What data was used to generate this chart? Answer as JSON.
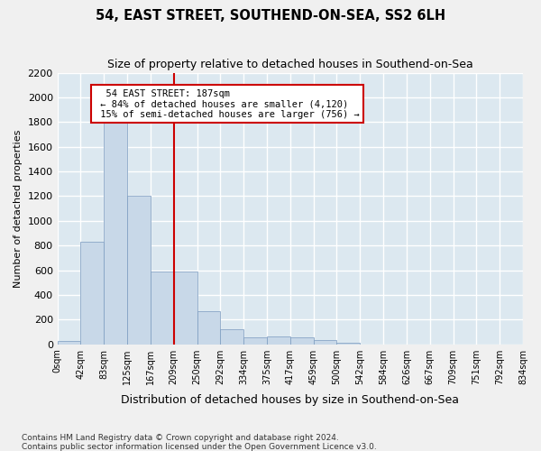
{
  "title": "54, EAST STREET, SOUTHEND-ON-SEA, SS2 6LH",
  "subtitle": "Size of property relative to detached houses in Southend-on-Sea",
  "xlabel": "Distribution of detached houses by size in Southend-on-Sea",
  "ylabel": "Number of detached properties",
  "footnote1": "Contains HM Land Registry data © Crown copyright and database right 2024.",
  "footnote2": "Contains public sector information licensed under the Open Government Licence v3.0.",
  "bar_color": "#c8d8e8",
  "bar_edge_color": "#7a9abf",
  "background_color": "#dce8f0",
  "grid_color": "#ffffff",
  "annotation_box_color": "#cc0000",
  "vline_color": "#cc0000",
  "bin_labels": [
    "0sqm",
    "42sqm",
    "83sqm",
    "125sqm",
    "167sqm",
    "209sqm",
    "250sqm",
    "292sqm",
    "334sqm",
    "375sqm",
    "417sqm",
    "459sqm",
    "500sqm",
    "542sqm",
    "584sqm",
    "626sqm",
    "667sqm",
    "709sqm",
    "751sqm",
    "792sqm",
    "834sqm"
  ],
  "bar_values": [
    30,
    830,
    1800,
    1200,
    590,
    590,
    270,
    120,
    55,
    60,
    55,
    35,
    15,
    0,
    0,
    0,
    0,
    0,
    0,
    0
  ],
  "ylim": [
    0,
    2200
  ],
  "yticks": [
    0,
    200,
    400,
    600,
    800,
    1000,
    1200,
    1400,
    1600,
    1800,
    2000,
    2200
  ],
  "annotation_title": "54 EAST STREET: 187sqm",
  "annotation_line1": "← 84% of detached houses are smaller (4,120)",
  "annotation_line2": "15% of semi-detached houses are larger (756) →",
  "vline_x": 5.0
}
